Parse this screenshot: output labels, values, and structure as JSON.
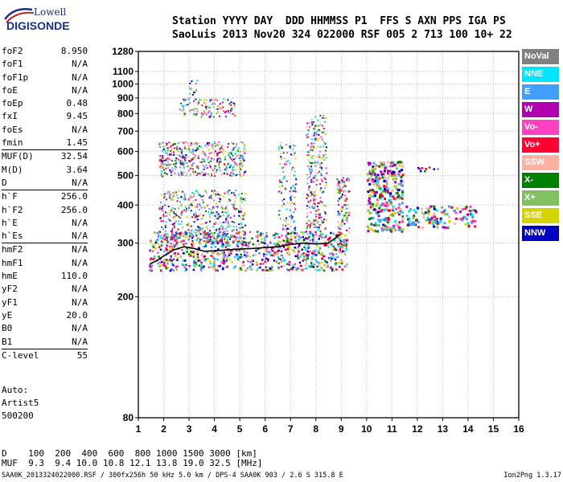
{
  "logo": {
    "line1": "Lowell",
    "line2": "DIGISONDE"
  },
  "header": {
    "line1": "Station YYYY DAY  DDD HHMMSS P1  FFS S AXN PPS IGA PS",
    "line2": "SaoLuis 2013 Nov20 324 022000 RSF 005 2 713 100 10+ 22"
  },
  "params": [
    {
      "k": "foF2",
      "v": "8.950"
    },
    {
      "k": "foF1",
      "v": "N/A"
    },
    {
      "k": "foF1p",
      "v": "N/A"
    },
    {
      "k": "foE",
      "v": "N/A"
    },
    {
      "k": "foEp",
      "v": "0.48"
    },
    {
      "k": "fxI",
      "v": "9.45"
    },
    {
      "k": "foEs",
      "v": "N/A"
    },
    {
      "k": "fmin",
      "v": "1.45"
    },
    {
      "k": "MUF(D)",
      "v": "32.54",
      "sep": true
    },
    {
      "k": "M(D)",
      "v": "3.64"
    },
    {
      "k": "D",
      "v": "N/A"
    },
    {
      "k": "h`F",
      "v": "256.0",
      "sep": true
    },
    {
      "k": "h`F2",
      "v": "256.0"
    },
    {
      "k": "h`E",
      "v": "N/A"
    },
    {
      "k": "h`Es",
      "v": "N/A"
    },
    {
      "k": "hmF2",
      "v": "N/A",
      "sep": true
    },
    {
      "k": "hmF1",
      "v": "N/A"
    },
    {
      "k": "hmE",
      "v": "110.0"
    },
    {
      "k": "yF2",
      "v": "N/A"
    },
    {
      "k": "yF1",
      "v": "N/A"
    },
    {
      "k": "yE",
      "v": "20.0"
    },
    {
      "k": "B0",
      "v": "N/A"
    },
    {
      "k": "B1",
      "v": "N/A"
    },
    {
      "k": "C-level",
      "v": "55",
      "sep": true
    }
  ],
  "auto": {
    "line1": "Auto:",
    "line2": "Artist5",
    "line3": "500200"
  },
  "legend": [
    {
      "label": "NoVal",
      "bg": "#808080",
      "fg": "#ffffff"
    },
    {
      "label": "NNE",
      "bg": "#00e5ff",
      "fg": "#ffffff"
    },
    {
      "label": "E",
      "bg": "#3fa0ff",
      "fg": "#ffffff"
    },
    {
      "label": "W",
      "bg": "#b000b0",
      "fg": "#ffffff"
    },
    {
      "label": "Vo-",
      "bg": "#ff40c0",
      "fg": "#ffffff"
    },
    {
      "label": "Vo+",
      "bg": "#ff0030",
      "fg": "#ffffff"
    },
    {
      "label": "SSW",
      "bg": "#ffb0a0",
      "fg": "#ffffff"
    },
    {
      "label": "X-",
      "bg": "#008000",
      "fg": "#ffffff"
    },
    {
      "label": "X+",
      "bg": "#80c060",
      "fg": "#ffffff"
    },
    {
      "label": "SSE",
      "bg": "#d4d400",
      "fg": "#ffffff"
    },
    {
      "label": "NNW",
      "bg": "#0000c0",
      "fg": "#ffffff"
    }
  ],
  "bottom": {
    "line1": "D    100  200  400  600  800 1000 1500 3000 [km]",
    "line2": "MUF  9.3  9.4 10.0 10.8 12.1 13.8 19.0 32.5 [MHz]"
  },
  "footer": {
    "left": "SAA0K_2013324022000.RSF / 300fx256h 50 kHz 5.0 km / DPS-4 SAA0K 903 / 2.6 S 315.8 E",
    "right": "Ion2Png 1.3.17"
  },
  "chart_data": {
    "type": "scatter",
    "title": "",
    "xlabel": "",
    "ylabel": "",
    "xlim": [
      1,
      16
    ],
    "ylim": [
      80,
      1280
    ],
    "x_ticks": [
      1,
      2,
      3,
      4,
      5,
      6,
      7,
      8,
      9,
      10,
      11,
      12,
      13,
      14,
      15,
      16
    ],
    "y_ticks": [
      80,
      200,
      300,
      400,
      500,
      600,
      700,
      800,
      900,
      1000,
      1100,
      1280
    ],
    "y_scale": "log",
    "grid": true,
    "legend_position": "right",
    "series": [
      {
        "name": "F-trace",
        "color": "#000000",
        "x": [
          1.45,
          1.7,
          2.0,
          2.4,
          2.8,
          3.2,
          3.6,
          4.0,
          4.5,
          5.0,
          5.5,
          6.0,
          6.5,
          7.0,
          7.5,
          8.0,
          8.5,
          8.95
        ],
        "y": [
          256,
          262,
          272,
          285,
          292,
          288,
          282,
          283,
          285,
          287,
          288,
          290,
          292,
          297,
          300,
          298,
          300,
          320
        ]
      },
      {
        "name": "Vo- (Pink)",
        "color": "#ff40c0",
        "x": [
          2.8,
          3.0,
          3.5,
          4.0,
          4.5,
          5.0,
          6.5,
          8.0,
          10.5
        ],
        "y": [
          300,
          310,
          315,
          320,
          325,
          330,
          320,
          310,
          480
        ]
      },
      {
        "name": "W (Purple)",
        "color": "#b000b0",
        "x": [
          2.2,
          2.8,
          3.4,
          4.0,
          4.5,
          6.5,
          8.0,
          10.3
        ],
        "y": [
          320,
          340,
          360,
          380,
          400,
          330,
          500,
          520
        ]
      },
      {
        "name": "SSE (Yellow)",
        "color": "#d4d400",
        "x": [
          2.0,
          2.5,
          3.0,
          3.5,
          4.0,
          4.5,
          5.0,
          5.5,
          6.0
        ],
        "y": [
          270,
          275,
          280,
          285,
          290,
          285,
          280,
          275,
          280
        ]
      },
      {
        "name": "E (Blue)",
        "color": "#3fa0ff",
        "x": [
          7.0,
          8.0,
          9.0,
          10.0
        ],
        "y": [
          330,
          340,
          350,
          360
        ]
      },
      {
        "name": "NNE (Cyan)",
        "color": "#00e5ff",
        "x": [
          8.0,
          9.0,
          10.0,
          11.0,
          12.5
        ],
        "y": [
          400,
          420,
          430,
          380,
          370
        ]
      }
    ]
  }
}
